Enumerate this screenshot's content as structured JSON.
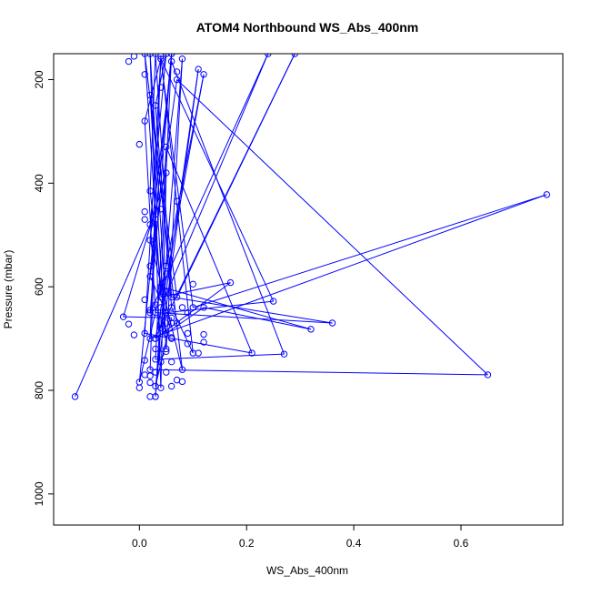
{
  "chart_data": {
    "type": "line",
    "title": "ATOM4 Northbound WS_Abs_400nm",
    "xlabel": "WS_Abs_400nm",
    "ylabel": "Pressure (mbar)",
    "xlim": [
      -0.16,
      0.79
    ],
    "ylim": [
      150,
      1060
    ],
    "y_reversed": true,
    "x_ticks": [
      0.0,
      0.2,
      0.4,
      0.6
    ],
    "x_tick_labels": [
      "0.0",
      "0.2",
      "0.4",
      "0.6"
    ],
    "y_ticks": [
      200,
      400,
      600,
      800,
      1000
    ],
    "y_tick_labels": [
      "200",
      "400",
      "600",
      "800",
      "1000"
    ],
    "grid": false,
    "legend": "none",
    "series_color": "#0000ff",
    "marker": "open-circle",
    "points": [
      {
        "x": -0.12,
        "y": 812
      },
      {
        "x": 0.02,
        "y": 480
      },
      {
        "x": 0.05,
        "y": 150
      },
      {
        "x": 0.03,
        "y": 250
      },
      {
        "x": 0.06,
        "y": 640
      },
      {
        "x": 0.1,
        "y": 728
      },
      {
        "x": 0.04,
        "y": 155
      },
      {
        "x": 0.02,
        "y": 700
      },
      {
        "x": 0.76,
        "y": 422
      },
      {
        "x": 0.1,
        "y": 640
      },
      {
        "x": 0.04,
        "y": 160
      },
      {
        "x": 0.01,
        "y": 280
      },
      {
        "x": 0.03,
        "y": 650
      },
      {
        "x": 0.36,
        "y": 670
      },
      {
        "x": 0.06,
        "y": 620
      },
      {
        "x": 0.03,
        "y": 150
      },
      {
        "x": 0.02,
        "y": 415
      },
      {
        "x": 0.05,
        "y": 690
      },
      {
        "x": 0.12,
        "y": 640
      },
      {
        "x": 0.32,
        "y": 682
      },
      {
        "x": 0.04,
        "y": 600
      },
      {
        "x": 0.06,
        "y": 150
      },
      {
        "x": 0.03,
        "y": 470
      },
      {
        "x": 0.02,
        "y": 760
      },
      {
        "x": 0.65,
        "y": 770
      },
      {
        "x": 0.07,
        "y": 200
      },
      {
        "x": 0.02,
        "y": 580
      },
      {
        "x": 0.05,
        "y": 650
      },
      {
        "x": 0.25,
        "y": 628
      },
      {
        "x": 0.04,
        "y": 160
      },
      {
        "x": 0.01,
        "y": 690
      },
      {
        "x": 0.21,
        "y": 728
      },
      {
        "x": 0.05,
        "y": 330
      },
      {
        "x": 0.03,
        "y": 740
      },
      {
        "x": 0.27,
        "y": 730
      },
      {
        "x": 0.06,
        "y": 165
      },
      {
        "x": 0.02,
        "y": 510
      },
      {
        "x": 0.08,
        "y": 760
      },
      {
        "x": 0.01,
        "y": 150
      },
      {
        "x": 0.04,
        "y": 620
      },
      {
        "x": 0.17,
        "y": 592
      },
      {
        "x": 0.03,
        "y": 700
      },
      {
        "x": 0.12,
        "y": 190
      },
      {
        "x": 0.05,
        "y": 560
      },
      {
        "x": 0.0,
        "y": 784
      },
      {
        "x": 0.06,
        "y": 150
      },
      {
        "x": 0.02,
        "y": 650
      },
      {
        "x": 0.24,
        "y": 150
      },
      {
        "x": 0.04,
        "y": 640
      },
      {
        "x": 0.03,
        "y": 812
      },
      {
        "x": 0.08,
        "y": 160
      },
      {
        "x": 0.05,
        "y": 720
      },
      {
        "x": 0.02,
        "y": 230
      },
      {
        "x": 0.07,
        "y": 620
      },
      {
        "x": 0.29,
        "y": 150
      },
      {
        "x": 0.04,
        "y": 680
      },
      {
        "x": 0.11,
        "y": 180
      },
      {
        "x": 0.03,
        "y": 792
      },
      {
        "x": 0.06,
        "y": 660
      },
      {
        "x": -0.03,
        "y": 658
      },
      {
        "x": 0.05,
        "y": 380
      },
      {
        "x": 0.04,
        "y": 795
      },
      {
        "x": 0.02,
        "y": 150
      },
      {
        "x": 0.05,
        "y": 650
      },
      {
        "x": 0.03,
        "y": 700
      }
    ],
    "extra_markers": [
      {
        "x": -0.02,
        "y": 165
      },
      {
        "x": -0.01,
        "y": 155
      },
      {
        "x": 0.0,
        "y": 325
      },
      {
        "x": 0.01,
        "y": 470
      },
      {
        "x": 0.01,
        "y": 625
      },
      {
        "x": 0.01,
        "y": 742
      },
      {
        "x": 0.02,
        "y": 772
      },
      {
        "x": 0.02,
        "y": 812
      },
      {
        "x": 0.03,
        "y": 812
      },
      {
        "x": 0.0,
        "y": 795
      },
      {
        "x": -0.02,
        "y": 672
      },
      {
        "x": -0.01,
        "y": 693
      },
      {
        "x": 0.04,
        "y": 215
      },
      {
        "x": 0.05,
        "y": 575
      },
      {
        "x": 0.06,
        "y": 698
      },
      {
        "x": 0.06,
        "y": 745
      },
      {
        "x": 0.07,
        "y": 780
      },
      {
        "x": 0.08,
        "y": 783
      },
      {
        "x": 0.09,
        "y": 710
      },
      {
        "x": 0.1,
        "y": 595
      },
      {
        "x": 0.12,
        "y": 692
      },
      {
        "x": 0.12,
        "y": 707
      },
      {
        "x": 0.11,
        "y": 728
      },
      {
        "x": 0.07,
        "y": 185
      },
      {
        "x": 0.05,
        "y": 670
      },
      {
        "x": 0.09,
        "y": 650
      },
      {
        "x": 0.06,
        "y": 792
      },
      {
        "x": 0.02,
        "y": 785
      },
      {
        "x": 0.04,
        "y": 745
      },
      {
        "x": 0.03,
        "y": 635
      },
      {
        "x": 0.06,
        "y": 670
      },
      {
        "x": 0.05,
        "y": 610
      },
      {
        "x": 0.02,
        "y": 560
      },
      {
        "x": 0.04,
        "y": 450
      },
      {
        "x": 0.01,
        "y": 455
      },
      {
        "x": 0.07,
        "y": 435
      },
      {
        "x": 0.01,
        "y": 190
      },
      {
        "x": 0.09,
        "y": 690
      },
      {
        "x": 0.03,
        "y": 720
      },
      {
        "x": 0.02,
        "y": 645
      },
      {
        "x": 0.06,
        "y": 700
      },
      {
        "x": 0.08,
        "y": 640
      },
      {
        "x": 0.04,
        "y": 730
      },
      {
        "x": 0.07,
        "y": 670
      },
      {
        "x": 0.05,
        "y": 725
      },
      {
        "x": 0.01,
        "y": 770
      },
      {
        "x": 0.03,
        "y": 765
      },
      {
        "x": 0.05,
        "y": 765
      }
    ]
  }
}
